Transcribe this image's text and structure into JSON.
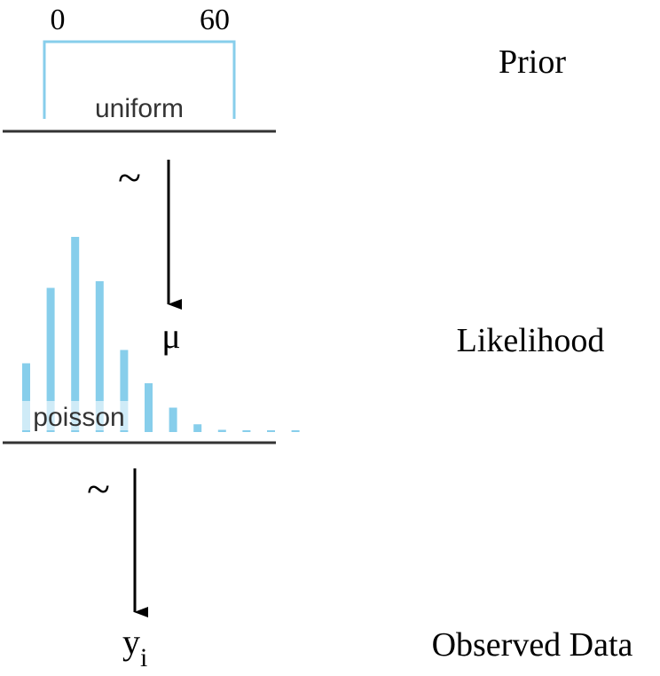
{
  "prior": {
    "distribution_label": "uniform",
    "lower_bound_label": "0",
    "upper_bound_label": "60",
    "row_label": "Prior",
    "color": "#87ceeb"
  },
  "likelihood": {
    "distribution_label": "poisson",
    "parameter_symbol": "μ",
    "row_label": "Likelihood",
    "color": "#87ceeb",
    "bar_heights": [
      0.31,
      0.65,
      0.88,
      0.68,
      0.37,
      0.22,
      0.11,
      0.035,
      0.01,
      0.006,
      0.003,
      0.002
    ]
  },
  "relation_symbol": "~",
  "observed": {
    "symbol": "y",
    "subscript": "i",
    "row_label": "Observed Data"
  },
  "colors": {
    "accent": "#87ceeb",
    "line": "#000000",
    "baseline": "#333333"
  }
}
